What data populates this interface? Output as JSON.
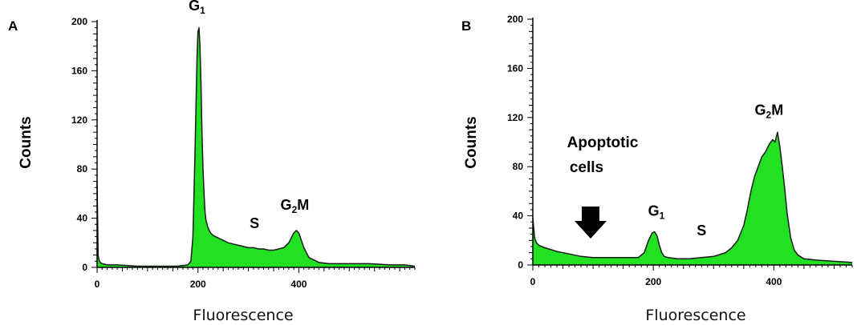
{
  "chart_data": [
    {
      "panel": "A",
      "type": "area",
      "xlabel": "Fluorescence",
      "ylabel": "Counts",
      "xlim": [
        0,
        630
      ],
      "ylim": [
        0,
        200
      ],
      "xticks": [
        0,
        200,
        400
      ],
      "yticks": [
        0,
        40,
        80,
        120,
        160,
        200
      ],
      "fill_color": "#22e022",
      "line_color": "#1a1a1a",
      "x": [
        0,
        2,
        4,
        6,
        10,
        20,
        40,
        80,
        120,
        160,
        180,
        186,
        190,
        194,
        198,
        200,
        202,
        204,
        206,
        208,
        210,
        212,
        214,
        216,
        220,
        225,
        230,
        240,
        250,
        260,
        270,
        280,
        290,
        300,
        310,
        320,
        330,
        340,
        350,
        360,
        370,
        380,
        385,
        390,
        395,
        400,
        405,
        410,
        420,
        440,
        460,
        500,
        540,
        580,
        610,
        630
      ],
      "values": [
        70,
        10,
        6,
        4,
        3,
        2,
        2,
        1,
        1,
        1,
        2,
        5,
        25,
        90,
        170,
        192,
        195,
        180,
        150,
        110,
        80,
        60,
        45,
        38,
        32,
        28,
        26,
        24,
        22,
        20,
        19,
        18,
        17,
        16,
        16,
        15,
        15,
        14,
        14,
        15,
        16,
        20,
        24,
        28,
        30,
        28,
        22,
        16,
        8,
        4,
        3,
        3,
        3,
        2,
        2,
        1
      ],
      "annotations": [
        {
          "main": "G",
          "sub": "1",
          "x": 198,
          "y": 209
        },
        {
          "main": "S",
          "x": 312,
          "y": 32
        },
        {
          "main": "G",
          "sub": "2",
          "tail": "M",
          "x": 392,
          "y": 47
        }
      ]
    },
    {
      "panel": "B",
      "type": "area",
      "xlabel": "Fluorescence",
      "ylabel": "Counts",
      "xlim": [
        0,
        530
      ],
      "ylim": [
        0,
        200
      ],
      "xticks": [
        0,
        200,
        400
      ],
      "yticks": [
        0,
        40,
        80,
        120,
        160,
        200
      ],
      "fill_color": "#22e022",
      "line_color": "#1a1a1a",
      "x": [
        0,
        3,
        6,
        10,
        20,
        40,
        60,
        80,
        100,
        120,
        140,
        160,
        175,
        185,
        192,
        198,
        202,
        206,
        210,
        214,
        218,
        225,
        240,
        260,
        280,
        300,
        320,
        330,
        340,
        350,
        356,
        362,
        368,
        374,
        380,
        386,
        392,
        398,
        402,
        406,
        410,
        414,
        418,
        422,
        428,
        434,
        440,
        450,
        470,
        500,
        530
      ],
      "values": [
        38,
        22,
        18,
        16,
        14,
        11,
        9,
        7,
        6,
        6,
        6,
        6,
        6,
        10,
        20,
        26,
        27,
        24,
        16,
        10,
        7,
        6,
        5,
        5,
        6,
        7,
        10,
        14,
        20,
        32,
        45,
        60,
        72,
        80,
        88,
        92,
        98,
        102,
        100,
        108,
        96,
        80,
        62,
        42,
        22,
        12,
        8,
        5,
        4,
        3,
        2
      ],
      "annotations": [
        {
          "main": "G",
          "sub": "1",
          "x": 205,
          "y": 40
        },
        {
          "main": "S",
          "x": 280,
          "y": 24
        },
        {
          "main": "G",
          "sub": "2",
          "tail": "M",
          "x": 392,
          "y": 122
        }
      ],
      "callout_lines": [
        "Apoptotic",
        "cells"
      ]
    }
  ]
}
